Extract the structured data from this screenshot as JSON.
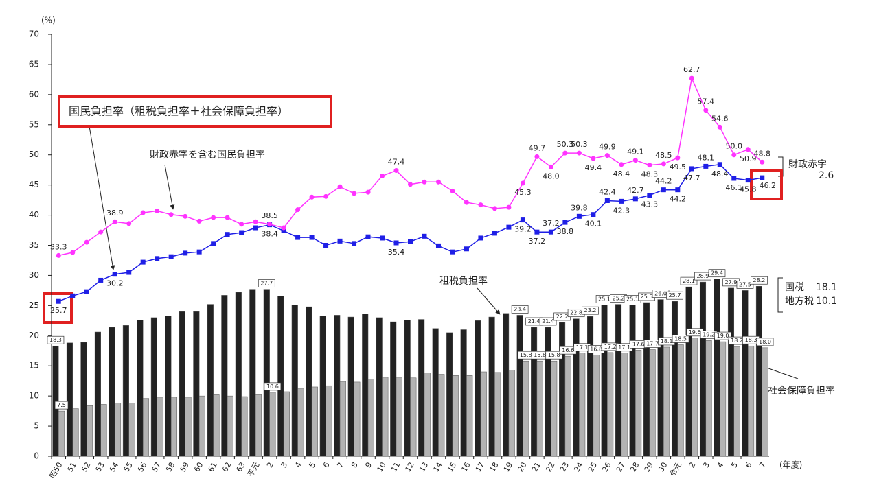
{
  "chart_data": {
    "type": "bar-line",
    "y_label": "(%)",
    "x_label": "(年度)",
    "ylim": [
      0,
      70
    ],
    "yticks": [
      0,
      5,
      10,
      15,
      20,
      25,
      30,
      35,
      40,
      45,
      50,
      55,
      60,
      65,
      70
    ],
    "categories": [
      "昭50",
      "51",
      "52",
      "53",
      "54",
      "55",
      "56",
      "57",
      "58",
      "59",
      "60",
      "61",
      "62",
      "63",
      "平元",
      "2",
      "3",
      "4",
      "5",
      "6",
      "7",
      "8",
      "9",
      "10",
      "11",
      "12",
      "13",
      "14",
      "15",
      "16",
      "17",
      "18",
      "19",
      "20",
      "21",
      "22",
      "23",
      "24",
      "25",
      "26",
      "27",
      "28",
      "29",
      "30",
      "令元",
      "2",
      "3",
      "4",
      "5",
      "6",
      "7"
    ],
    "series": [
      {
        "name": "租税負担率",
        "type": "bar",
        "color": "#222222",
        "values": [
          18.3,
          18.8,
          18.9,
          20.6,
          21.4,
          21.7,
          22.6,
          23.0,
          23.3,
          24.0,
          24.0,
          25.2,
          26.7,
          27.2,
          27.7,
          27.7,
          26.6,
          25.1,
          24.8,
          23.3,
          23.4,
          23.1,
          23.6,
          23.0,
          22.3,
          22.6,
          22.7,
          21.2,
          20.5,
          21.0,
          22.5,
          23.1,
          23.7,
          23.4,
          21.4,
          21.4,
          22.2,
          22.8,
          23.2,
          25.1,
          25.2,
          25.1,
          25.5,
          26.0,
          25.7,
          28.1,
          28.9,
          29.4,
          27.9,
          27.5,
          28.2
        ],
        "value_labels": [
          "18.3",
          null,
          null,
          null,
          null,
          null,
          null,
          null,
          null,
          null,
          null,
          null,
          null,
          null,
          null,
          "27.7",
          null,
          null,
          null,
          null,
          null,
          null,
          null,
          null,
          null,
          null,
          null,
          null,
          null,
          null,
          null,
          null,
          null,
          "23.4",
          "21.4",
          "21.4",
          "22.2",
          "22.8",
          "23.2",
          "25.1",
          "25.2",
          "25.1",
          "25.5",
          "26.0",
          "25.7",
          "28.1",
          "28.9",
          "29.4",
          "27.9",
          "27.5",
          "28.2"
        ]
      },
      {
        "name": "社会保障負担率",
        "type": "bar",
        "color": "#b3b3b3",
        "values": [
          7.5,
          7.9,
          8.4,
          8.6,
          8.8,
          8.8,
          9.6,
          9.8,
          9.8,
          9.8,
          10.0,
          10.2,
          10.0,
          9.9,
          10.2,
          10.6,
          10.7,
          11.2,
          11.5,
          11.7,
          12.4,
          12.3,
          12.8,
          13.1,
          13.1,
          13.0,
          13.8,
          13.6,
          13.4,
          13.4,
          14.0,
          13.9,
          14.3,
          15.8,
          15.8,
          15.8,
          16.6,
          17.1,
          16.8,
          17.2,
          17.1,
          17.6,
          17.7,
          18.1,
          18.5,
          19.6,
          19.2,
          19.0,
          18.2,
          18.3,
          18.0
        ],
        "value_labels": [
          "7.5",
          null,
          null,
          null,
          null,
          null,
          null,
          null,
          null,
          null,
          null,
          null,
          null,
          null,
          null,
          "10.6",
          null,
          null,
          null,
          null,
          null,
          null,
          null,
          null,
          null,
          null,
          null,
          null,
          null,
          null,
          null,
          null,
          null,
          "15.8",
          "15.8",
          "15.8",
          "16.6",
          "17.1",
          "16.8",
          "17.2",
          "17.1",
          "17.6",
          "17.7",
          "18.1",
          "18.5",
          "19.6",
          "19.2",
          "19.0",
          "18.2",
          "18.3",
          "18.0"
        ]
      },
      {
        "name": "国民負担率（租税負担率＋社会保障負担率）",
        "type": "line",
        "color": "#1f1fe6",
        "values": [
          25.7,
          26.6,
          27.3,
          29.2,
          30.2,
          30.5,
          32.2,
          32.8,
          33.1,
          33.7,
          33.9,
          35.3,
          36.8,
          37.1,
          37.9,
          38.4,
          37.4,
          36.3,
          36.3,
          35.0,
          35.7,
          35.3,
          36.4,
          36.2,
          35.4,
          35.6,
          36.5,
          34.9,
          33.9,
          34.4,
          36.2,
          37.0,
          38.0,
          39.2,
          37.2,
          37.2,
          38.8,
          39.8,
          40.1,
          42.4,
          42.3,
          42.7,
          43.3,
          44.2,
          44.2,
          47.7,
          48.1,
          48.4,
          46.1,
          45.8,
          46.2
        ],
        "value_labels": [
          "25.7",
          null,
          null,
          null,
          "30.2",
          null,
          null,
          null,
          null,
          null,
          null,
          null,
          null,
          null,
          null,
          "38.4",
          null,
          null,
          null,
          null,
          null,
          null,
          null,
          null,
          "35.4",
          null,
          null,
          null,
          null,
          null,
          null,
          null,
          null,
          "39.2",
          "37.2",
          "37.2",
          "38.8",
          "39.8",
          "40.1",
          "42.4",
          "42.3",
          "42.7",
          "43.3",
          "44.2",
          "44.2",
          "47.7",
          "48.1",
          "48.4",
          "46.1",
          "45.8",
          "46.2"
        ]
      },
      {
        "name": "財政赤字を含む国民負担率",
        "type": "line",
        "color": "#ff33ff",
        "values": [
          33.3,
          33.8,
          35.5,
          37.2,
          38.9,
          38.6,
          40.4,
          40.7,
          40.1,
          39.8,
          39.0,
          39.6,
          39.6,
          38.5,
          38.9,
          38.5,
          37.9,
          40.9,
          43.0,
          43.1,
          44.7,
          43.6,
          43.8,
          46.5,
          47.4,
          45.1,
          45.5,
          45.5,
          44.0,
          42.1,
          41.7,
          41.1,
          41.3,
          45.3,
          49.7,
          48.0,
          50.3,
          50.3,
          49.4,
          49.9,
          48.4,
          49.1,
          48.3,
          48.5,
          49.5,
          62.7,
          57.4,
          54.6,
          50.0,
          50.9,
          48.8
        ],
        "value_labels": [
          "33.3",
          null,
          null,
          null,
          "38.9",
          null,
          null,
          null,
          null,
          null,
          null,
          null,
          null,
          null,
          null,
          "38.5",
          null,
          null,
          null,
          null,
          null,
          null,
          null,
          null,
          "47.4",
          null,
          null,
          null,
          null,
          null,
          null,
          null,
          null,
          "45.3",
          "49.7",
          "48.0",
          "50.3",
          "50.3",
          "49.4",
          "49.9",
          "48.4",
          "49.1",
          "48.3",
          "48.5",
          "49.5",
          "62.7",
          "57.4",
          "54.6",
          "50.0",
          "50.9",
          "48.8"
        ]
      }
    ],
    "annotations": [
      {
        "text": "財政赤字",
        "value": 2.6
      },
      {
        "text": "国税",
        "value": 18.1
      },
      {
        "text": "地方税",
        "value": 10.1
      }
    ]
  }
}
